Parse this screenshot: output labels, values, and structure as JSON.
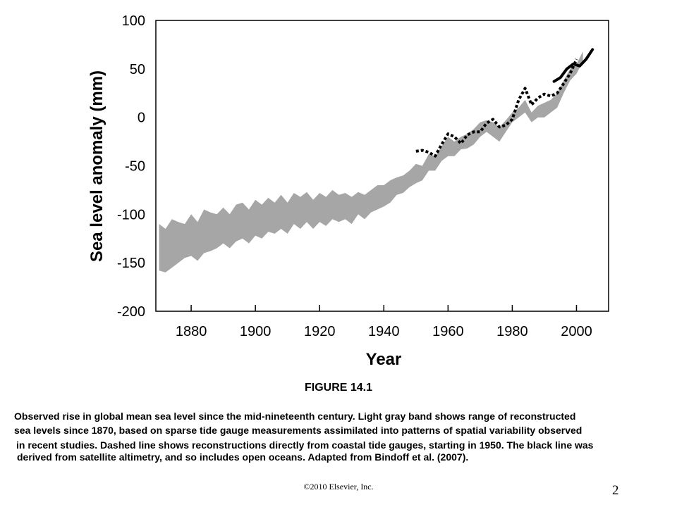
{
  "chart_data": {
    "type": "area",
    "xlabel": "Year",
    "ylabel": "Sea level anomaly (mm)",
    "xlim": [
      1869,
      2010
    ],
    "ylim": [
      -200,
      100
    ],
    "x_ticks": [
      1880,
      1900,
      1920,
      1940,
      1960,
      1980,
      2000
    ],
    "y_ticks": [
      100,
      50,
      0,
      -50,
      -100,
      -150,
      -200
    ],
    "grid": false,
    "colors": {
      "band": "#a6a6a6",
      "line": "#000000"
    },
    "series": [
      {
        "style": "gray band",
        "x": [
          1870,
          1872,
          1874,
          1876,
          1878,
          1880,
          1882,
          1884,
          1886,
          1888,
          1890,
          1892,
          1894,
          1896,
          1898,
          1900,
          1902,
          1904,
          1906,
          1908,
          1910,
          1912,
          1914,
          1916,
          1918,
          1920,
          1922,
          1924,
          1926,
          1928,
          1930,
          1932,
          1934,
          1936,
          1938,
          1940,
          1942,
          1944,
          1946,
          1948,
          1950,
          1952,
          1954,
          1956,
          1958,
          1960,
          1962,
          1964,
          1966,
          1968,
          1970,
          1972,
          1974,
          1976,
          1978,
          1980,
          1982,
          1984,
          1986,
          1988,
          1990,
          1992,
          1994,
          1996,
          1998,
          2000,
          2002
        ],
        "upper": [
          -110,
          -115,
          -105,
          -108,
          -110,
          -100,
          -108,
          -95,
          -98,
          -100,
          -93,
          -100,
          -90,
          -88,
          -95,
          -85,
          -90,
          -83,
          -88,
          -80,
          -88,
          -78,
          -82,
          -77,
          -85,
          -78,
          -82,
          -75,
          -80,
          -78,
          -82,
          -77,
          -80,
          -75,
          -70,
          -70,
          -65,
          -62,
          -60,
          -55,
          -48,
          -50,
          -38,
          -40,
          -30,
          -20,
          -25,
          -20,
          -17,
          -12,
          -5,
          -3,
          -5,
          -10,
          -3,
          5,
          10,
          18,
          5,
          12,
          15,
          18,
          25,
          38,
          50,
          55,
          68
        ],
        "lower": [
          -158,
          -160,
          -155,
          -150,
          -145,
          -143,
          -148,
          -140,
          -138,
          -135,
          -130,
          -135,
          -128,
          -125,
          -130,
          -122,
          -125,
          -118,
          -120,
          -115,
          -120,
          -110,
          -115,
          -108,
          -115,
          -108,
          -112,
          -105,
          -108,
          -105,
          -110,
          -100,
          -105,
          -98,
          -95,
          -92,
          -88,
          -80,
          -78,
          -72,
          -68,
          -65,
          -55,
          -55,
          -45,
          -40,
          -40,
          -33,
          -32,
          -28,
          -20,
          -15,
          -20,
          -25,
          -15,
          -5,
          0,
          5,
          -5,
          0,
          0,
          5,
          10,
          25,
          38,
          45,
          58
        ]
      },
      {
        "name": "",
        "style": "dashed",
        "x": [
          1950,
          1952,
          1954,
          1956,
          1958,
          1960,
          1962,
          1964,
          1966,
          1968,
          1970,
          1972,
          1974,
          1976,
          1978,
          1980,
          1982,
          1984,
          1986,
          1988,
          1990,
          1992,
          1994,
          1996,
          1998,
          2000
        ],
        "y": [
          -35,
          -34,
          -36,
          -40,
          -28,
          -17,
          -20,
          -27,
          -18,
          -15,
          -15,
          -6,
          -2,
          -10,
          -8,
          -2,
          18,
          30,
          13,
          20,
          24,
          22,
          25,
          35,
          45,
          60
        ]
      },
      {
        "name": "",
        "style": "solid",
        "x": [
          1993,
          1995,
          1997,
          1999,
          2001,
          2003,
          2005
        ],
        "y": [
          37,
          41,
          50,
          55,
          53,
          60,
          70
        ]
      }
    ]
  },
  "figure_title": "FIGURE 14.1",
  "caption_lines": [
    "Observed rise in global mean sea level since the mid-nineteenth century. Light gray band shows range of reconstructed",
    "sea levels since 1870, based on sparse tide gauge measurements assimilated into patterns of spatial variability observed",
    " in recent studies. Dashed line shows reconstructions directly from coastal tide gauges, starting in 1950. The black line was",
    " derived from satellite altimetry, and so includes open oceans. Adapted from Bindoff et al. (2007)."
  ],
  "copyright": "©2010 Elsevier, Inc.",
  "page_number": "2"
}
